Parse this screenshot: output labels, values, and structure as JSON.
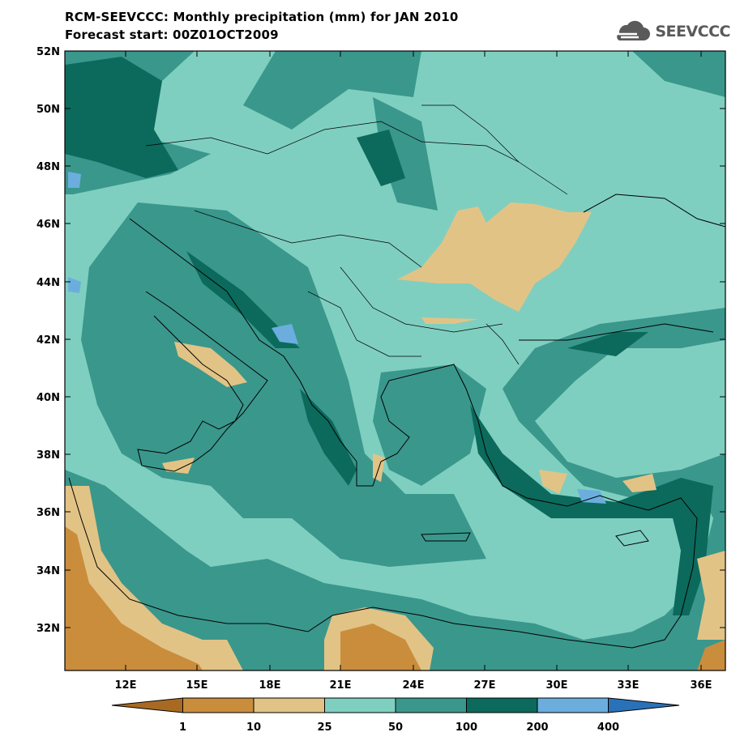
{
  "header": {
    "title_line1": "RCM-SEEVCCC: Monthly precipitation (mm) for JAN 2010",
    "title_line2": "Forecast start: 00Z01OCT2009"
  },
  "logo": {
    "text": "SEEVCCC",
    "icon": "cloud-icon"
  },
  "map": {
    "lat_labels": [
      "52N",
      "50N",
      "48N",
      "46N",
      "44N",
      "42N",
      "40N",
      "38N",
      "36N",
      "34N",
      "32N"
    ],
    "lon_labels": [
      "12E",
      "15E",
      "18E",
      "21E",
      "24E",
      "27E",
      "30E",
      "33E",
      "36E"
    ]
  },
  "legend": {
    "thresholds": [
      "1",
      "10",
      "25",
      "50",
      "100",
      "200",
      "400"
    ],
    "colors": [
      "#a86a22",
      "#c98d3c",
      "#e2c386",
      "#7fcfc0",
      "#3a978c",
      "#0b6a5c",
      "#6baede",
      "#2a72b8"
    ]
  },
  "palette": {
    "background_class": "#7fcfc0",
    "class_25_50": "#e2c386",
    "class_100_200": "#3a978c",
    "class_200_400": "#0b6a5c",
    "class_400_plus": "#6baede",
    "class_10_25": "#c98d3c"
  }
}
